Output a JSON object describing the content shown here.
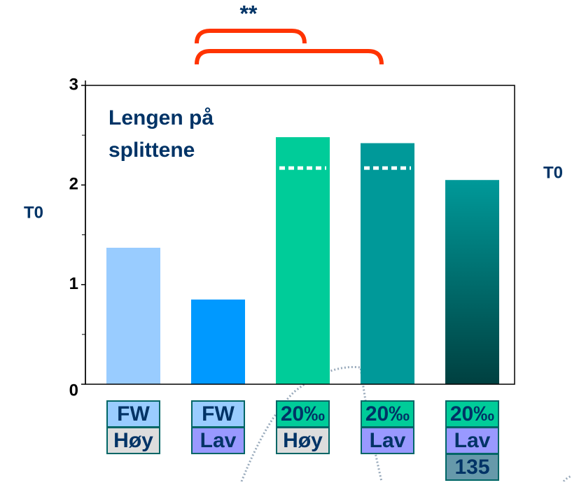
{
  "chart_data": {
    "type": "bar",
    "title": [
      "Lengen på",
      "splittene"
    ],
    "y_label_left": "T0",
    "y_label_right": "T0",
    "significance": "**",
    "categories": [
      [
        "FW",
        "Høy"
      ],
      [
        "FW",
        "Lav"
      ],
      [
        "20‰",
        "Høy"
      ],
      [
        "20‰",
        "Lav"
      ],
      [
        "20‰",
        "Lav",
        "135"
      ]
    ],
    "label_colors": [
      [
        "#99ccff",
        "#dddddd"
      ],
      [
        "#99ccff",
        "#9999ff"
      ],
      [
        "#00cc99",
        "#dddddd"
      ],
      [
        "#00cc99",
        "#9999ff"
      ],
      [
        "#00cc99",
        "#9999ff",
        "#6699aa"
      ]
    ],
    "values": [
      1.37,
      0.85,
      2.48,
      2.42,
      2.05
    ],
    "colors": [
      "#99ccff",
      "#0099ff",
      "#00cc99",
      "#009999",
      "#009999"
    ],
    "gradient_to": {
      "index": 4,
      "color": "#004040"
    },
    "reference_line": {
      "value": 2.17,
      "bars": [
        2,
        3
      ]
    },
    "ylim": [
      0,
      3
    ],
    "yticks": [
      0,
      1,
      2,
      3
    ],
    "minor_yticks": [
      0.5,
      1.5,
      2.5
    ]
  }
}
